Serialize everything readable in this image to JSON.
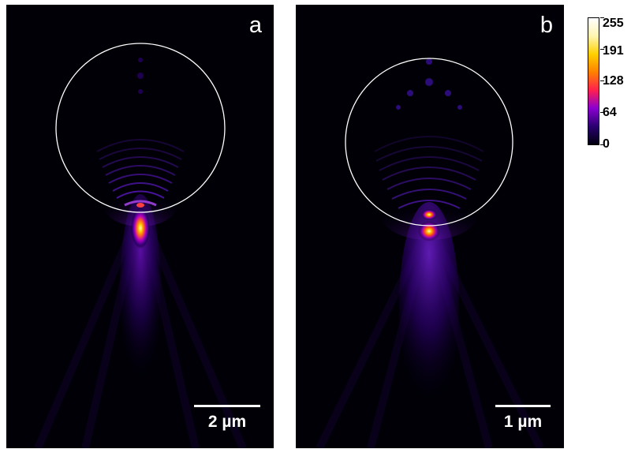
{
  "panels": [
    {
      "letter": "a",
      "scalebar_label": "2 µm"
    },
    {
      "letter": "b",
      "scalebar_label": "1 µm"
    }
  ],
  "colorbar": {
    "ticks": [
      "255",
      "191",
      "128",
      "64",
      "0"
    ],
    "gradient": [
      "#000010",
      "#2a0070",
      "#8a00d0",
      "#ff2050",
      "#ff8000",
      "#ffd000",
      "#fff5b0",
      "#ffffff"
    ]
  },
  "colors": {
    "background": "#000006",
    "circle_outline": "#ffffff",
    "hot_core": "#fff4a0"
  }
}
